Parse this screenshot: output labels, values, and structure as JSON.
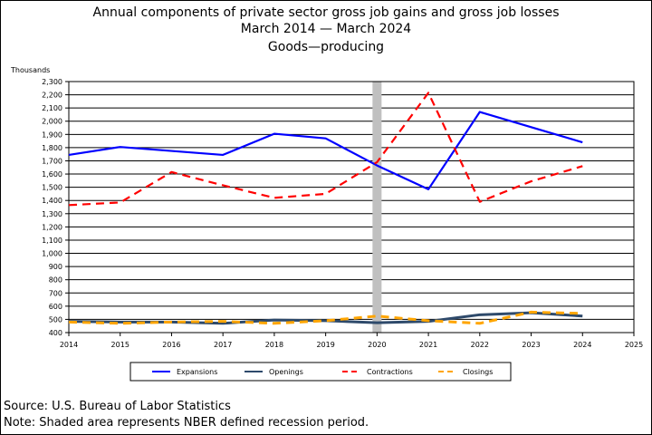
{
  "titles": {
    "line1": "Annual components of private sector gross job gains and gross job losses",
    "line2": "March 2014 — March 2024",
    "line3": "Goods—producing"
  },
  "footer": {
    "source": "Source: U.S. Bureau of Labor Statistics",
    "note": "Note: Shaded area represents NBER defined recession period."
  },
  "chart_data": {
    "type": "line",
    "ylabel": "Thousands",
    "xlabel": "",
    "x": [
      2014,
      2015,
      2016,
      2017,
      2018,
      2019,
      2020,
      2021,
      2022,
      2023,
      2024
    ],
    "xticks": [
      "2014",
      "2015",
      "2016",
      "2017",
      "2018",
      "2019",
      "2020",
      "2021",
      "2022",
      "2023",
      "2024",
      "2025"
    ],
    "xlim": [
      2014,
      2025
    ],
    "ylim": [
      400,
      2300
    ],
    "yticks": [
      "400",
      "500",
      "600",
      "700",
      "800",
      "900",
      "1,000",
      "1,100",
      "1,200",
      "1,300",
      "1,400",
      "1,500",
      "1,600",
      "1,700",
      "1,800",
      "1,900",
      "2,000",
      "2,100",
      "2,200",
      "2,300"
    ],
    "grid": true,
    "legend_position": "bottom",
    "recession_shading": [
      2020
    ],
    "recession_color": "#c0c0c0",
    "series": [
      {
        "name": "Expansions",
        "color": "#0000ff",
        "dash": "solid",
        "width": 2.2,
        "values": [
          1745,
          1805,
          1775,
          1745,
          1905,
          1870,
          1665,
          1485,
          2070,
          1955,
          1840
        ]
      },
      {
        "name": "Openings",
        "color": "#2e4a6b",
        "dash": "solid",
        "width": 3.0,
        "values": [
          485,
          480,
          480,
          470,
          495,
          490,
          475,
          485,
          535,
          550,
          525
        ]
      },
      {
        "name": "Contractions",
        "color": "#ff0000",
        "dash": "dashed",
        "width": 2.2,
        "values": [
          1365,
          1385,
          1615,
          1515,
          1420,
          1450,
          1690,
          2215,
          1390,
          1545,
          1660
        ]
      },
      {
        "name": "Closings",
        "color": "#ffa500",
        "dash": "dashed",
        "width": 3.0,
        "values": [
          480,
          470,
          480,
          485,
          470,
          490,
          525,
          490,
          470,
          555,
          545
        ]
      }
    ]
  }
}
